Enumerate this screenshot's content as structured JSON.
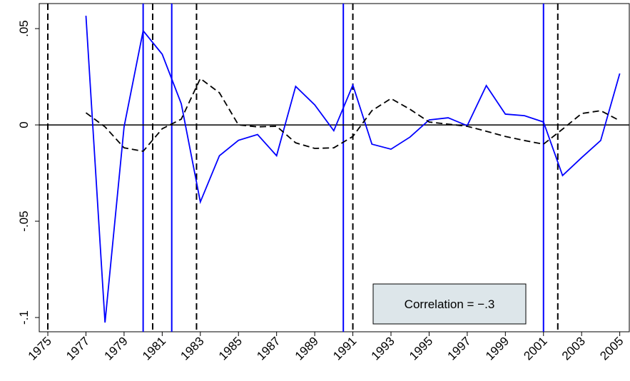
{
  "chart_data": {
    "type": "line",
    "x": [
      1977,
      1978,
      1979,
      1980,
      1981,
      1982,
      1983,
      1984,
      1985,
      1986,
      1987,
      1988,
      1989,
      1990,
      1991,
      1992,
      1993,
      1994,
      1995,
      1996,
      1997,
      1998,
      1999,
      2000,
      2001,
      2002,
      2003,
      2004,
      2005
    ],
    "series": [
      {
        "color": "#0000ff",
        "dash": "solid",
        "values": [
          0.0567,
          -0.1026,
          -0.001,
          0.0489,
          0.0367,
          0.011,
          -0.04,
          -0.016,
          -0.008,
          -0.005,
          -0.016,
          0.02,
          0.0104,
          -0.003,
          0.0207,
          -0.01,
          -0.0126,
          -0.0063,
          0.0026,
          0.0037,
          -0.0004,
          0.0204,
          0.0056,
          0.0048,
          0.0015,
          -0.0263,
          -0.017,
          -0.0081,
          0.0267
        ]
      },
      {
        "color": "#000000",
        "dash": "dashed",
        "values": [
          0.0063,
          -0.001,
          -0.0119,
          -0.0137,
          -0.002,
          0.003,
          0.0241,
          0.0167,
          0,
          -0.001,
          -0.0007,
          -0.0093,
          -0.0122,
          -0.0119,
          -0.006,
          0.0074,
          0.0137,
          0.0081,
          0.0015,
          0.0004,
          -0.0007,
          -0.0033,
          -0.006,
          -0.0081,
          -0.01,
          -0.0022,
          0.0059,
          0.0074,
          0.0022
        ]
      }
    ],
    "vlines": [
      {
        "color": "#000000",
        "dash": "dashed",
        "x": [
          1975,
          1980.5,
          1982.8,
          1991,
          2001.75
        ]
      },
      {
        "color": "#0000ff",
        "dash": "solid",
        "x": [
          1980,
          1981.5,
          1990.5,
          2001
        ]
      }
    ],
    "hline": 0,
    "xlim": [
      1974.55,
      2005.5
    ],
    "ylim": [
      -0.1074,
      0.063
    ],
    "xticks": [
      1975,
      1977,
      1979,
      1981,
      1983,
      1985,
      1987,
      1989,
      1991,
      1993,
      1995,
      1997,
      1999,
      2001,
      2003,
      2005
    ],
    "yticks": [
      {
        "value": -0.1,
        "label": "-.1"
      },
      {
        "value": -0.05,
        "label": "-.05"
      },
      0,
      {
        "value": 0.05,
        "label": ".05"
      }
    ],
    "annotation": "Correlation = −.3"
  }
}
